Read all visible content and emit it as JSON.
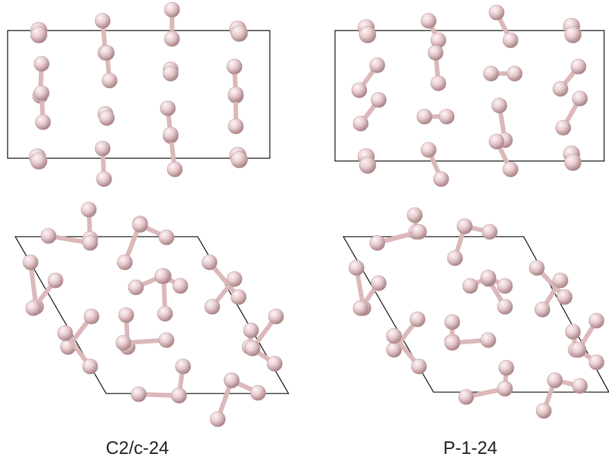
{
  "panels": [
    {
      "id": "c2c-side",
      "view": "side"
    },
    {
      "id": "p1-side",
      "view": "side"
    },
    {
      "id": "c2c-top",
      "view": "top"
    },
    {
      "id": "p1-top",
      "view": "top"
    }
  ],
  "labels": {
    "left": "C2/c-24",
    "right": "P-1-24"
  },
  "colors": {
    "atom_light": "#fbeff0",
    "atom_dark": "#9c6f72",
    "atom_mid": "#e3c5c7",
    "bond": "#dcb8ba",
    "cell_line": "#111111"
  }
}
